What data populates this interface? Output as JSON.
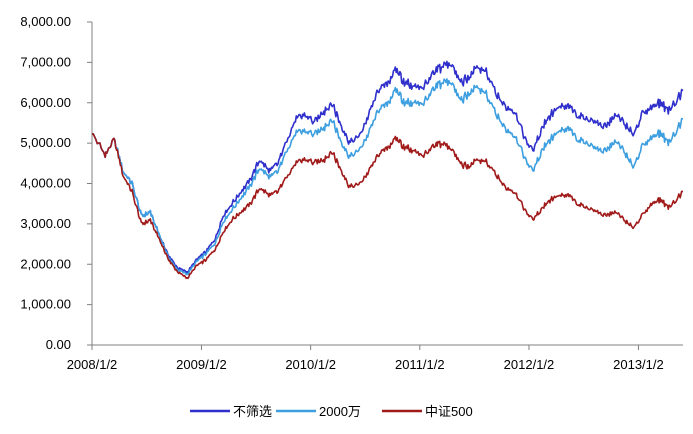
{
  "chart_data": {
    "type": "line",
    "title": "",
    "xlabel": "",
    "ylabel": "",
    "ylim": [
      0,
      8000
    ],
    "grid": false,
    "legend_position": "bottom",
    "y_ticks": [
      0,
      1000,
      2000,
      3000,
      4000,
      5000,
      6000,
      7000,
      8000
    ],
    "y_tick_labels": [
      "0.00",
      "1,000.00",
      "2,000.00",
      "3,000.00",
      "4,000.00",
      "5,000.00",
      "6,000.00",
      "7,000.00",
      "8,000.00"
    ],
    "x_tick_labels": [
      "2008/1/2",
      "2009/1/2",
      "2010/1/2",
      "2011/1/2",
      "2012/1/2",
      "2013/1/2"
    ],
    "x_tick_years": [
      2008,
      2009,
      2010,
      2011,
      2012,
      2013
    ],
    "x_range": [
      "2008-01-02",
      "2013-05-31"
    ],
    "x": [
      "2008-01",
      "2008-02",
      "2008-03",
      "2008-04",
      "2008-05",
      "2008-06",
      "2008-07",
      "2008-08",
      "2008-09",
      "2008-10",
      "2008-11",
      "2008-12",
      "2009-01",
      "2009-02",
      "2009-03",
      "2009-04",
      "2009-05",
      "2009-06",
      "2009-07",
      "2009-08",
      "2009-09",
      "2009-10",
      "2009-11",
      "2009-12",
      "2010-01",
      "2010-02",
      "2010-03",
      "2010-04",
      "2010-05",
      "2010-06",
      "2010-07",
      "2010-08",
      "2010-09",
      "2010-10",
      "2010-11",
      "2010-12",
      "2011-01",
      "2011-02",
      "2011-03",
      "2011-04",
      "2011-05",
      "2011-06",
      "2011-07",
      "2011-08",
      "2011-09",
      "2011-10",
      "2011-11",
      "2011-12",
      "2012-01",
      "2012-02",
      "2012-03",
      "2012-04",
      "2012-05",
      "2012-06",
      "2012-07",
      "2012-08",
      "2012-09",
      "2012-10",
      "2012-11",
      "2012-12",
      "2013-01",
      "2013-02",
      "2013-03",
      "2013-04",
      "2013-05"
    ],
    "series": [
      {
        "name": "不筛选",
        "color": "#2f2fcb",
        "values": [
          5300,
          4700,
          5100,
          4300,
          4000,
          3200,
          3300,
          2700,
          2200,
          1900,
          1800,
          2100,
          2300,
          2600,
          3200,
          3500,
          3800,
          4100,
          4600,
          4300,
          4500,
          5100,
          5600,
          5700,
          5500,
          5800,
          6000,
          5400,
          5000,
          5200,
          5700,
          6300,
          6500,
          6800,
          6500,
          6400,
          6400,
          6700,
          6900,
          7000,
          6500,
          6600,
          6900,
          6700,
          6200,
          5900,
          5800,
          5200,
          4800,
          5400,
          5700,
          5900,
          5900,
          5700,
          5600,
          5500,
          5400,
          5700,
          5500,
          5200,
          5700,
          5900,
          6000,
          5800,
          6300
        ]
      },
      {
        "name": "2000万",
        "color": "#3d9fe0",
        "values": [
          5300,
          4700,
          5100,
          4300,
          4000,
          3200,
          3300,
          2700,
          2150,
          1850,
          1750,
          2050,
          2250,
          2500,
          3050,
          3350,
          3650,
          3950,
          4400,
          4150,
          4300,
          4850,
          5250,
          5300,
          5200,
          5400,
          5600,
          5000,
          4650,
          4850,
          5250,
          5800,
          6000,
          6300,
          6000,
          6000,
          6000,
          6300,
          6500,
          6550,
          6050,
          6200,
          6400,
          6150,
          5700,
          5350,
          5200,
          4700,
          4300,
          4850,
          5100,
          5300,
          5350,
          5100,
          5000,
          4850,
          4800,
          5050,
          4800,
          4400,
          4900,
          5150,
          5250,
          5000,
          5600
        ]
      },
      {
        "name": "中证500",
        "color": "#a01a1a",
        "values": [
          5300,
          4700,
          5100,
          4200,
          3800,
          3000,
          3100,
          2600,
          2100,
          1800,
          1650,
          1950,
          2100,
          2350,
          2800,
          3100,
          3300,
          3500,
          3900,
          3700,
          3800,
          4200,
          4500,
          4600,
          4500,
          4600,
          4800,
          4300,
          3900,
          4000,
          4300,
          4700,
          4900,
          5100,
          4900,
          4800,
          4700,
          4900,
          5000,
          4900,
          4500,
          4400,
          4600,
          4500,
          4200,
          3900,
          3800,
          3400,
          3100,
          3400,
          3600,
          3700,
          3700,
          3500,
          3400,
          3300,
          3200,
          3300,
          3100,
          2900,
          3200,
          3500,
          3600,
          3400,
          3800
        ]
      }
    ]
  }
}
